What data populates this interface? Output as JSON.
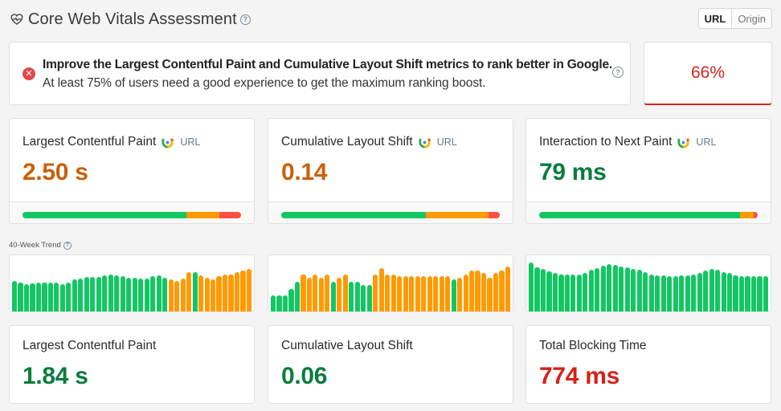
{
  "header": {
    "title": "Core Web Vitals Assessment",
    "icon": "heart-pulse-icon",
    "help_icon": "help-icon"
  },
  "toggle": {
    "options": [
      {
        "label": "URL",
        "active": true
      },
      {
        "label": "Origin",
        "active": false
      }
    ]
  },
  "alert": {
    "icon": "error-x-icon",
    "line1": "Improve the Largest Contentful Paint and Cumulative Layout Shift metrics to rank better in Google.",
    "line2": "At least 75% of users need a good experience to get the maximum ranking boost.",
    "help_icon": "help-icon"
  },
  "score": {
    "value": "66%",
    "color": "#d4231a"
  },
  "colors": {
    "good": "#12c762",
    "needs_improvement": "#ff9a00",
    "poor": "#ff4e42",
    "value_orange": "#c9600a",
    "value_green": "#0a7d3e",
    "value_red": "#d4231a"
  },
  "metrics": [
    {
      "label": "Largest Contentful Paint",
      "source": "URL",
      "source_icon": "crux-icon",
      "value": "2.50 s",
      "status": "needs_improvement",
      "dist": [
        75,
        15,
        10
      ]
    },
    {
      "label": "Cumulative Layout Shift",
      "source": "URL",
      "source_icon": "crux-icon",
      "value": "0.14",
      "status": "needs_improvement",
      "dist": [
        66,
        29,
        5
      ]
    },
    {
      "label": "Interaction to Next Paint",
      "source": "URL",
      "source_icon": "crux-icon",
      "value": "79 ms",
      "status": "good",
      "dist": [
        92,
        6,
        2
      ]
    }
  ],
  "trend": {
    "label": "40-Week Trend",
    "help_icon": "help-icon"
  },
  "chart_data": [
    {
      "type": "bar",
      "title": "Largest Contentful Paint 40-Week Trend",
      "x": [
        1,
        2,
        3,
        4,
        5,
        6,
        7,
        8,
        9,
        10,
        11,
        12,
        13,
        14,
        15,
        16,
        17,
        18,
        19,
        20,
        21,
        22,
        23,
        24,
        25,
        26,
        27,
        28,
        29,
        30,
        31,
        32,
        33,
        34,
        35,
        36,
        37,
        38,
        39,
        40
      ],
      "values": [
        58,
        55,
        51,
        53,
        55,
        55,
        55,
        55,
        52,
        55,
        60,
        62,
        65,
        65,
        65,
        68,
        69,
        68,
        66,
        64,
        64,
        62,
        62,
        66,
        68,
        63,
        60,
        57,
        62,
        75,
        75,
        68,
        63,
        61,
        66,
        70,
        70,
        74,
        78,
        80
      ],
      "status": [
        "g",
        "g",
        "g",
        "g",
        "g",
        "g",
        "g",
        "g",
        "g",
        "g",
        "g",
        "g",
        "g",
        "g",
        "g",
        "g",
        "g",
        "g",
        "g",
        "g",
        "g",
        "g",
        "g",
        "g",
        "g",
        "g",
        "n",
        "n",
        "n",
        "n",
        "g",
        "n",
        "n",
        "n",
        "n",
        "n",
        "n",
        "n",
        "n",
        "n"
      ],
      "ylim": [
        0,
        100
      ]
    },
    {
      "type": "bar",
      "title": "Cumulative Layout Shift 40-Week Trend",
      "x": [
        1,
        2,
        3,
        4,
        5,
        6,
        7,
        8,
        9,
        10,
        11,
        12,
        13,
        14,
        15,
        16,
        17,
        18,
        19,
        20,
        21,
        22,
        23,
        24,
        25,
        26,
        27,
        28,
        29,
        30,
        31,
        32,
        33,
        34,
        35,
        36,
        37,
        38,
        39,
        40
      ],
      "values": [
        30,
        30,
        30,
        43,
        56,
        70,
        63,
        70,
        63,
        70,
        56,
        63,
        70,
        56,
        56,
        50,
        50,
        70,
        82,
        70,
        70,
        67,
        67,
        67,
        67,
        67,
        67,
        67,
        67,
        67,
        60,
        64,
        70,
        78,
        78,
        72,
        64,
        72,
        78,
        85
      ],
      "status": [
        "g",
        "g",
        "g",
        "g",
        "g",
        "n",
        "n",
        "n",
        "n",
        "n",
        "g",
        "n",
        "n",
        "g",
        "g",
        "g",
        "g",
        "n",
        "n",
        "n",
        "n",
        "n",
        "n",
        "n",
        "n",
        "n",
        "n",
        "n",
        "n",
        "n",
        "g",
        "n",
        "n",
        "n",
        "n",
        "n",
        "n",
        "n",
        "n",
        "n"
      ],
      "ylim": [
        0,
        100
      ]
    },
    {
      "type": "bar",
      "title": "Interaction to Next Paint 40-Week Trend",
      "x": [
        1,
        2,
        3,
        4,
        5,
        6,
        7,
        8,
        9,
        10,
        11,
        12,
        13,
        14,
        15,
        16,
        17,
        18,
        19,
        20,
        21,
        22,
        23,
        24,
        25,
        26,
        27,
        28,
        29,
        30,
        31,
        32,
        33,
        34,
        35,
        36,
        37,
        38,
        39,
        40
      ],
      "values": [
        92,
        84,
        80,
        76,
        73,
        70,
        70,
        70,
        70,
        73,
        79,
        82,
        86,
        90,
        88,
        85,
        84,
        80,
        79,
        74,
        70,
        68,
        68,
        66,
        67,
        68,
        68,
        70,
        73,
        78,
        80,
        79,
        74,
        72,
        68,
        66,
        66,
        66,
        66,
        66
      ],
      "status": [
        "g",
        "g",
        "g",
        "g",
        "g",
        "g",
        "g",
        "g",
        "g",
        "g",
        "g",
        "g",
        "g",
        "g",
        "g",
        "g",
        "g",
        "g",
        "g",
        "g",
        "g",
        "g",
        "g",
        "g",
        "g",
        "g",
        "g",
        "g",
        "g",
        "g",
        "g",
        "g",
        "g",
        "g",
        "g",
        "g",
        "g",
        "g",
        "g",
        "g"
      ],
      "ylim": [
        0,
        100
      ]
    }
  ],
  "lab_metrics": [
    {
      "label": "Largest Contentful Paint",
      "value": "1.84 s",
      "status": "good"
    },
    {
      "label": "Cumulative Layout Shift",
      "value": "0.06",
      "status": "good"
    },
    {
      "label": "Total Blocking Time",
      "value": "774 ms",
      "status": "poor"
    }
  ]
}
